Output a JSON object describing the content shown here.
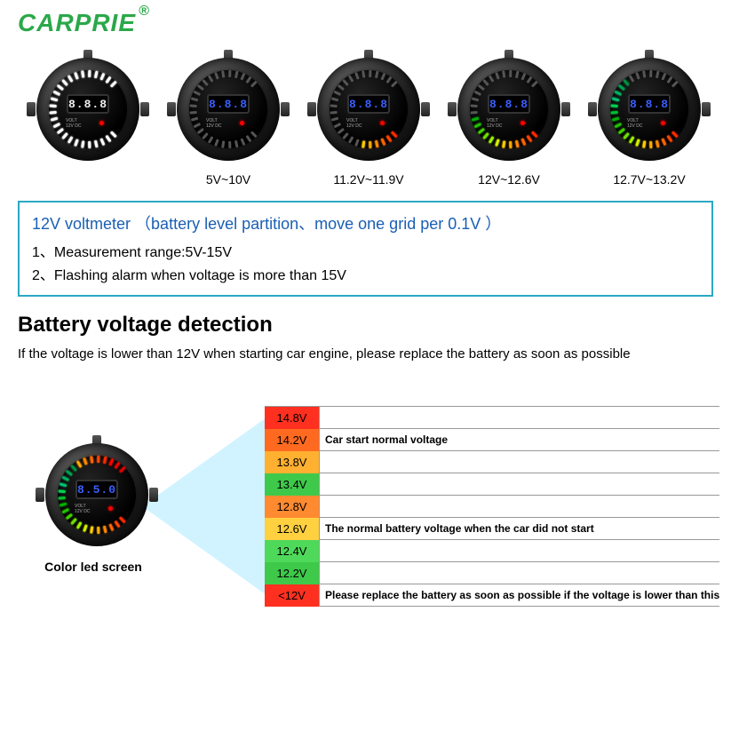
{
  "logo": {
    "text": "CARPRIE",
    "reg": "®",
    "color": "#2ba84a"
  },
  "gauges": [
    {
      "caption": "",
      "display": "8.8.8",
      "display_color": "white",
      "ticks": {
        "count": 26,
        "fill": 26,
        "colors": [
          "#ffffff"
        ],
        "off_color": "#333"
      }
    },
    {
      "caption": "5V~10V",
      "display": "8.8.8",
      "display_color": "blue",
      "ticks": {
        "count": 26,
        "fill": 0,
        "colors": [],
        "off_color": "#555"
      }
    },
    {
      "caption": "11.2V~11.9V",
      "display": "8.8.8",
      "display_color": "blue",
      "ticks": {
        "count": 26,
        "fill": 6,
        "colors": [
          "#ff2a00",
          "#ff4400",
          "#ff6600",
          "#ff8800",
          "#ffaa00",
          "#ffcc00"
        ],
        "off_color": "#555"
      }
    },
    {
      "caption": "12V~12.6V",
      "display": "8.8.8",
      "display_color": "blue",
      "ticks": {
        "count": 26,
        "fill": 12,
        "colors": [
          "#ff2a00",
          "#ff4400",
          "#ff6600",
          "#ff8800",
          "#ffaa00",
          "#ffcc00",
          "#d4ee00",
          "#a0f000",
          "#70e000",
          "#40d000",
          "#20c000",
          "#00b000"
        ],
        "off_color": "#555"
      }
    },
    {
      "caption": "12.7V~13.2V",
      "display": "8.8.8",
      "display_color": "blue",
      "ticks": {
        "count": 26,
        "fill": 18,
        "colors": [
          "#ff2a00",
          "#ff4400",
          "#ff6600",
          "#ff8800",
          "#ffaa00",
          "#ffcc00",
          "#d4ee00",
          "#a0f000",
          "#70e000",
          "#40d000",
          "#20c000",
          "#00b000",
          "#00c030",
          "#00d050",
          "#00c070",
          "#00b060",
          "#00a050",
          "#009040"
        ],
        "off_color": "#555"
      }
    }
  ],
  "info_box": {
    "title": "12V voltmeter （battery level partition、move one grid per 0.1V ）",
    "lines": [
      "1、Measurement range:5V-15V",
      "2、Flashing alarm when voltage is more than 15V"
    ],
    "border_color": "#2ba8c4",
    "title_color": "#1a5fb4"
  },
  "section": {
    "title": "Battery voltage detection",
    "sub": "If the voltage is lower than 12V when starting car engine, please replace the battery as soon as possible"
  },
  "bottom_gauge": {
    "label": "Color led screen",
    "display": "8.5.0",
    "tick_colors": [
      "#ff2a00",
      "#ff4400",
      "#ff6600",
      "#ff8800",
      "#ffaa00",
      "#ffcc00",
      "#d4ee00",
      "#a0f000",
      "#70e000",
      "#40d000",
      "#20c000",
      "#00b000",
      "#00c030",
      "#00d050",
      "#00c070",
      "#00b060",
      "#00a050",
      "#009040",
      "#ffaa00",
      "#ff8800",
      "#ff6600",
      "#ff4400",
      "#ff2a00",
      "#ff0000",
      "#ee0000",
      "#dd0000"
    ]
  },
  "voltage_table": {
    "rows": [
      {
        "v": "14.8V",
        "bg": "#ff3020",
        "note": ""
      },
      {
        "v": "14.2V",
        "bg": "#ff6a20",
        "note": "Car start normal voltage",
        "bold": true
      },
      {
        "v": "13.8V",
        "bg": "#ffb030",
        "note": ""
      },
      {
        "v": "13.4V",
        "bg": "#3fc94a",
        "note": ""
      },
      {
        "v": "12.8V",
        "bg": "#ff8a30",
        "note": ""
      },
      {
        "v": "12.6V",
        "bg": "#ffd040",
        "note": "The normal battery voltage when the car did not start",
        "bold": true
      },
      {
        "v": "12.4V",
        "bg": "#4fd95a",
        "note": ""
      },
      {
        "v": "12.2V",
        "bg": "#3fc94a",
        "note": ""
      },
      {
        "v": "<12V",
        "bg": "#ff3020",
        "note": "Please replace the battery as soon as possible if the voltage is lower than this",
        "bold": true
      }
    ]
  }
}
